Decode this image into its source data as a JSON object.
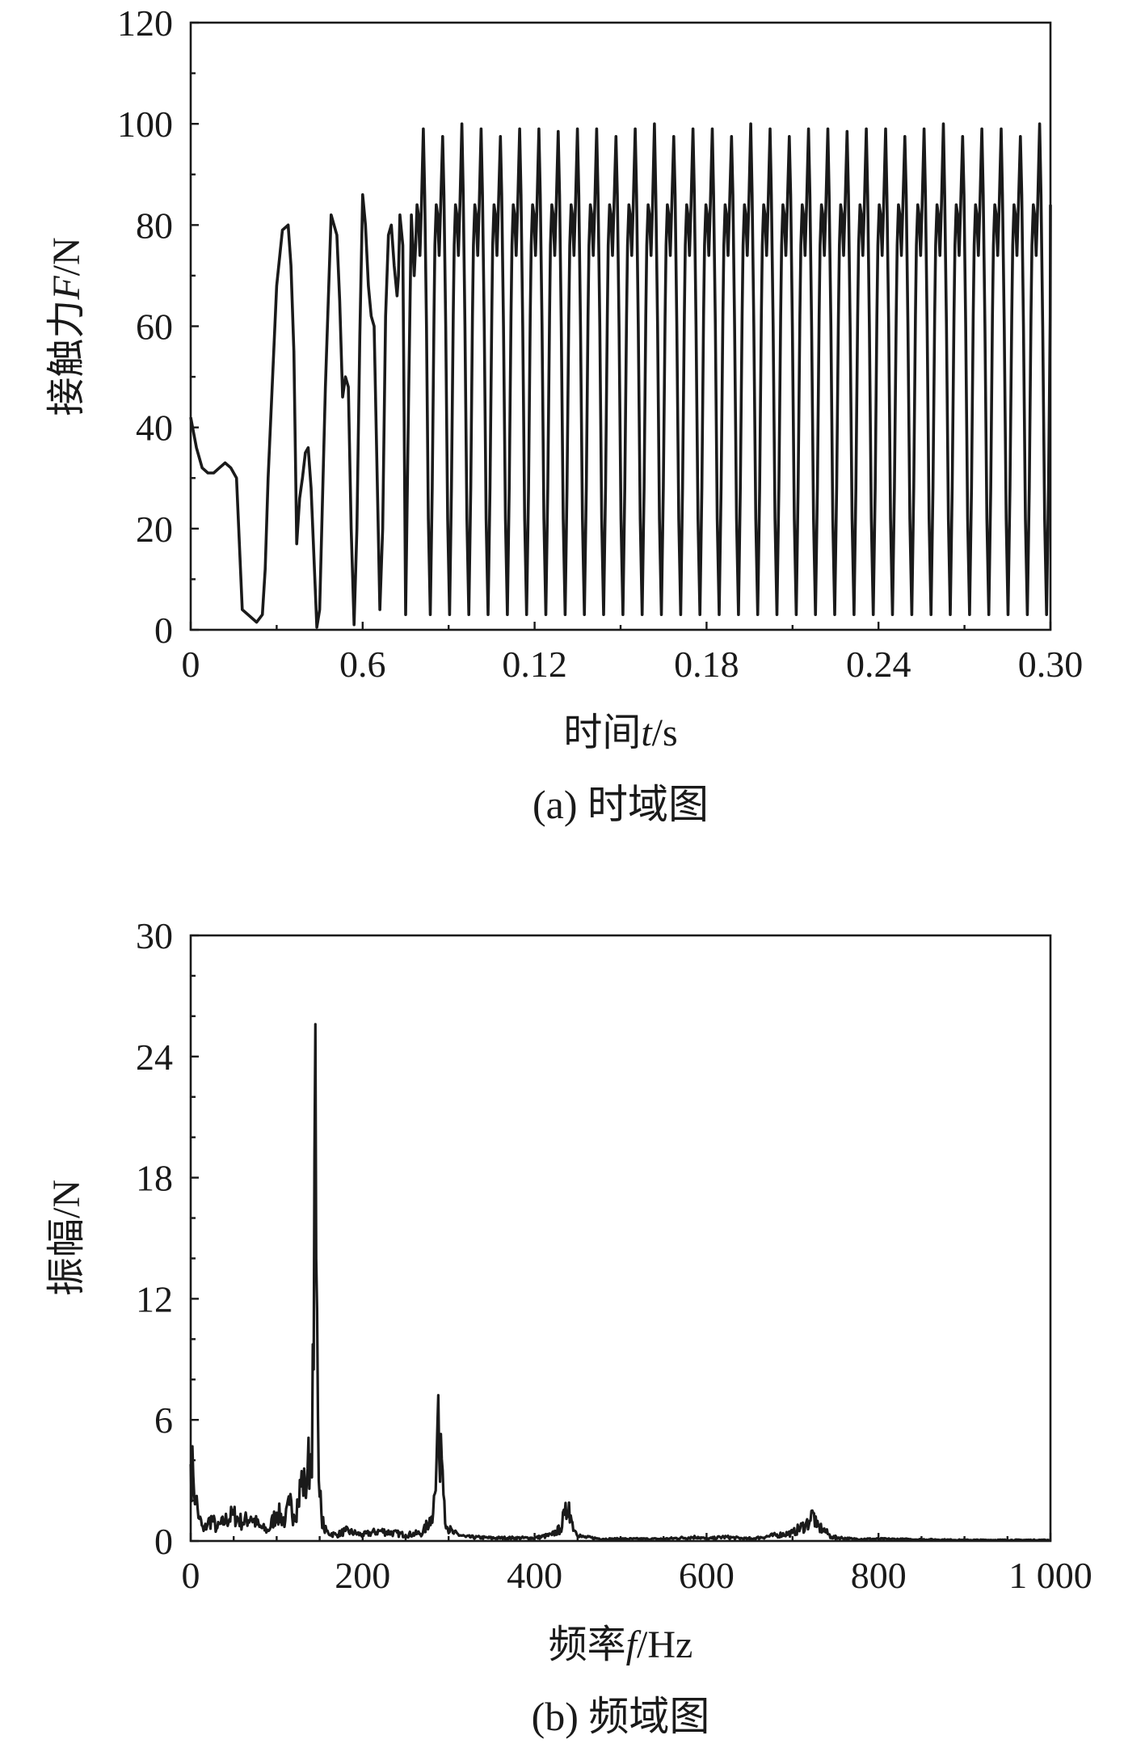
{
  "chart_data": [
    {
      "type": "line",
      "ylabel_prefix": "接触力",
      "ylabel_var": "F",
      "ylabel_unit": "/N",
      "xlabel_prefix": "时间",
      "xlabel_var": "t",
      "xlabel_unit": "/s",
      "caption": "(a) 时域图",
      "ylim": [
        0,
        120
      ],
      "yticks": [
        "0",
        "20",
        "40",
        "60",
        "80",
        "100",
        "120"
      ],
      "xticks": [
        "0",
        "0.6",
        "0.12",
        "0.18",
        "0.24",
        "0.30"
      ],
      "xlim": [
        0,
        0.3
      ],
      "series": [
        {
          "x": [
            0.0,
            0.002,
            0.004,
            0.006,
            0.008,
            0.01,
            0.012,
            0.014,
            0.016,
            0.018,
            0.019,
            0.021,
            0.023,
            0.025,
            0.026,
            0.027,
            0.03,
            0.032,
            0.034,
            0.035,
            0.036,
            0.037,
            0.038,
            0.039,
            0.04,
            0.041,
            0.042,
            0.044,
            0.045,
            0.047,
            0.049,
            0.051,
            0.052,
            0.053,
            0.054,
            0.055,
            0.056,
            0.057,
            0.058,
            0.059,
            0.06,
            0.061,
            0.062,
            0.063,
            0.064,
            0.066,
            0.067,
            0.068,
            0.069,
            0.07,
            0.071,
            0.072,
            0.0725,
            0.073,
            0.074,
            0.075,
            0.076,
            0.077,
            0.078
          ],
          "y": [
            42,
            36,
            32,
            31,
            31,
            32,
            33,
            32,
            30,
            4,
            3.5,
            2.5,
            1.5,
            3,
            12,
            30,
            68,
            79,
            80,
            72,
            55,
            17,
            26,
            30,
            35,
            36,
            28,
            0.5,
            4,
            48,
            82,
            78,
            65,
            46,
            50,
            48,
            20,
            1,
            20,
            58,
            86,
            80,
            68,
            62,
            60,
            4,
            20,
            62,
            78,
            80,
            72,
            66,
            70,
            82,
            76,
            3,
            44,
            82,
            70
          ],
          "cycles": {
            "start": 0.0785,
            "period": 0.00672,
            "peak": 99,
            "secondary": 82,
            "trough": 3
          }
        }
      ]
    },
    {
      "type": "line",
      "ylabel_prefix": "振幅",
      "ylabel_unit": "/N",
      "xlabel_prefix": "频率",
      "xlabel_var": "f",
      "xlabel_unit": "/Hz",
      "caption": "(b) 频域图",
      "ylim": [
        0,
        30
      ],
      "yticks": [
        "0",
        "6",
        "12",
        "18",
        "24",
        "30"
      ],
      "xlim": [
        0,
        1000
      ],
      "xticks": [
        "0",
        "200",
        "400",
        "600",
        "800",
        "1 000"
      ],
      "series": [
        {
          "x": [
            0,
            3,
            6,
            10,
            15,
            20,
            25,
            30,
            40,
            50,
            60,
            70,
            80,
            90,
            100,
            110,
            115,
            120,
            125,
            130,
            133,
            136,
            140,
            143,
            145,
            146,
            147,
            148,
            149,
            150,
            152,
            155,
            160,
            170,
            180,
            200,
            220,
            250,
            270,
            280,
            285,
            287,
            289,
            291,
            293,
            295,
            298,
            305,
            320,
            350,
            400,
            420,
            430,
            435,
            438,
            440,
            443,
            447,
            455,
            480,
            550,
            590,
            600,
            620,
            650,
            700,
            715,
            720,
            724,
            728,
            735,
            745,
            770,
            800,
            900,
            1000
          ],
          "y": [
            3.8,
            3.2,
            2.1,
            1.1,
            0.5,
            0.9,
            1.1,
            0.6,
            1.0,
            1.3,
            0.9,
            1.2,
            0.7,
            0.5,
            1.4,
            1.0,
            1.8,
            1.3,
            2.0,
            3.2,
            2.4,
            3.6,
            4.3,
            8.5,
            25.6,
            14.0,
            11.5,
            6.2,
            3.0,
            2.2,
            1.4,
            0.6,
            0.4,
            0.3,
            0.5,
            0.3,
            0.5,
            0.3,
            0.4,
            1.2,
            2.5,
            5.8,
            4.2,
            5.3,
            3.5,
            2.0,
            0.7,
            0.4,
            0.2,
            0.15,
            0.15,
            0.3,
            0.6,
            1.3,
            1.4,
            1.9,
            1.0,
            0.5,
            0.2,
            0.1,
            0.1,
            0.2,
            0.1,
            0.2,
            0.1,
            0.4,
            0.8,
            1.0,
            1.4,
            0.7,
            0.6,
            0.2,
            0.1,
            0.1,
            0.05,
            0.05
          ]
        }
      ]
    }
  ]
}
